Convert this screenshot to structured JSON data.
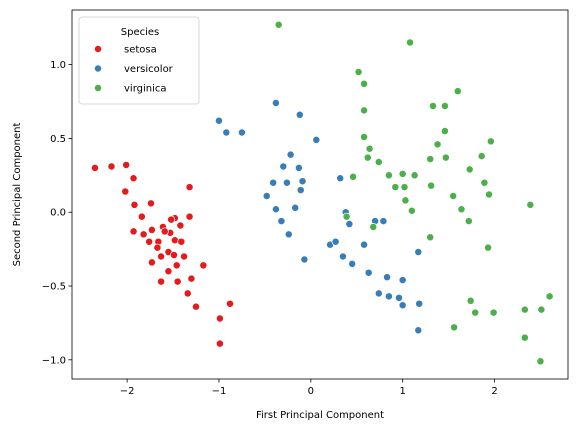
{
  "chart_data": {
    "type": "scatter",
    "title": "",
    "xlabel": "First Principal Component",
    "ylabel": "Second Principal Component",
    "xlim": [
      -2.6,
      2.8
    ],
    "ylim": [
      -1.13,
      1.37
    ],
    "x_ticks": [
      -2,
      -1,
      0,
      1,
      2
    ],
    "y_ticks": [
      -1.0,
      -0.5,
      0.0,
      0.5,
      1.0
    ],
    "x_tick_labels": [
      "−2",
      "−1",
      "0",
      "1",
      "2"
    ],
    "y_tick_labels": [
      "−1.0",
      "−0.5",
      "0.0",
      "0.5",
      "1.0"
    ],
    "grid": false,
    "legend": {
      "title": "Species",
      "placement": "top-left"
    },
    "series": [
      {
        "name": "setosa",
        "color": "#e41a1c",
        "points": [
          [
            -2.35,
            0.3
          ],
          [
            -2.17,
            0.31
          ],
          [
            -2.01,
            0.32
          ],
          [
            -1.93,
            0.23
          ],
          [
            -2.02,
            0.14
          ],
          [
            -1.92,
            0.05
          ],
          [
            -1.74,
            0.06
          ],
          [
            -1.84,
            -0.03
          ],
          [
            -1.93,
            -0.13
          ],
          [
            -1.73,
            -0.12
          ],
          [
            -1.82,
            -0.15
          ],
          [
            -1.66,
            -0.2
          ],
          [
            -1.53,
            -0.14
          ],
          [
            -1.48,
            -0.04
          ],
          [
            -1.32,
            -0.03
          ],
          [
            -1.32,
            0.17
          ],
          [
            -1.42,
            -0.09
          ],
          [
            -1.63,
            -0.3
          ],
          [
            -1.48,
            -0.19
          ],
          [
            -1.55,
            -0.27
          ],
          [
            -1.63,
            -0.47
          ],
          [
            -1.45,
            -0.47
          ],
          [
            -1.34,
            -0.55
          ],
          [
            -1.46,
            -0.36
          ],
          [
            -1.17,
            -0.36
          ],
          [
            -1.25,
            -0.64
          ],
          [
            -0.88,
            -0.62
          ],
          [
            -0.99,
            -0.72
          ],
          [
            -0.99,
            -0.89
          ],
          [
            -1.61,
            -0.1
          ],
          [
            -1.52,
            -0.05
          ],
          [
            -1.59,
            -0.13
          ],
          [
            -1.41,
            -0.2
          ],
          [
            -1.49,
            -0.29
          ],
          [
            -1.55,
            -0.4
          ],
          [
            -1.3,
            -0.45
          ],
          [
            -1.38,
            -0.3
          ],
          [
            -1.76,
            -0.2
          ],
          [
            -1.67,
            -0.24
          ],
          [
            -1.73,
            -0.34
          ]
        ]
      },
      {
        "name": "versicolor",
        "color": "#377eb8",
        "points": [
          [
            -1.0,
            0.62
          ],
          [
            -0.92,
            0.54
          ],
          [
            -0.75,
            0.54
          ],
          [
            -0.38,
            0.74
          ],
          [
            -0.12,
            0.66
          ],
          [
            0.06,
            0.49
          ],
          [
            -0.22,
            0.39
          ],
          [
            -0.3,
            0.31
          ],
          [
            -0.13,
            0.3
          ],
          [
            -0.48,
            0.11
          ],
          [
            -0.41,
            0.2
          ],
          [
            -0.26,
            0.2
          ],
          [
            -0.09,
            0.21
          ],
          [
            -0.38,
            0.02
          ],
          [
            -0.11,
            0.15
          ],
          [
            -0.32,
            -0.06
          ],
          [
            -0.17,
            0.03
          ],
          [
            -0.24,
            -0.15
          ],
          [
            -0.07,
            -0.32
          ],
          [
            0.21,
            -0.22
          ],
          [
            0.32,
            0.23
          ],
          [
            0.46,
            0.24
          ],
          [
            0.27,
            -0.2
          ],
          [
            0.35,
            -0.3
          ],
          [
            0.42,
            -0.08
          ],
          [
            0.45,
            -0.35
          ],
          [
            0.58,
            -0.22
          ],
          [
            0.7,
            -0.06
          ],
          [
            0.74,
            -0.55
          ],
          [
            0.83,
            -0.44
          ],
          [
            0.85,
            -0.57
          ],
          [
            0.79,
            -0.06
          ],
          [
            0.96,
            -0.58
          ],
          [
            1.0,
            -0.63
          ],
          [
            1.0,
            -0.46
          ],
          [
            1.17,
            -0.27
          ],
          [
            1.18,
            -0.62
          ],
          [
            1.17,
            -0.8
          ],
          [
            0.63,
            -0.41
          ],
          [
            0.38,
            0.0
          ]
        ]
      },
      {
        "name": "virginica",
        "color": "#4daf4a",
        "points": [
          [
            -0.35,
            1.27
          ],
          [
            1.08,
            1.15
          ],
          [
            0.52,
            0.95
          ],
          [
            0.58,
            0.87
          ],
          [
            0.58,
            0.69
          ],
          [
            0.58,
            0.51
          ],
          [
            0.64,
            0.43
          ],
          [
            0.62,
            0.37
          ],
          [
            0.74,
            0.34
          ],
          [
            0.85,
            0.25
          ],
          [
            0.92,
            0.17
          ],
          [
            1.02,
            0.17
          ],
          [
            1.0,
            0.26
          ],
          [
            1.13,
            0.25
          ],
          [
            1.03,
            0.08
          ],
          [
            1.1,
            0.01
          ],
          [
            1.31,
            0.18
          ],
          [
            1.3,
            0.36
          ],
          [
            1.38,
            0.46
          ],
          [
            1.46,
            0.55
          ],
          [
            1.33,
            0.72
          ],
          [
            1.46,
            0.72
          ],
          [
            1.6,
            0.82
          ],
          [
            1.47,
            0.37
          ],
          [
            1.73,
            0.29
          ],
          [
            1.86,
            0.38
          ],
          [
            1.96,
            0.48
          ],
          [
            1.89,
            0.2
          ],
          [
            1.94,
            0.12
          ],
          [
            1.55,
            0.11
          ],
          [
            1.64,
            0.02
          ],
          [
            1.72,
            -0.06
          ],
          [
            1.93,
            -0.24
          ],
          [
            1.3,
            -0.17
          ],
          [
            0.39,
            -0.03
          ],
          [
            1.74,
            -0.6
          ],
          [
            1.79,
            -0.68
          ],
          [
            1.99,
            -0.68
          ],
          [
            1.56,
            -0.78
          ],
          [
            2.33,
            -0.66
          ],
          [
            2.33,
            -0.85
          ],
          [
            2.51,
            -0.66
          ],
          [
            2.6,
            -0.57
          ],
          [
            2.5,
            -1.01
          ],
          [
            2.39,
            0.05
          ],
          [
            0.46,
            0.24
          ],
          [
            0.68,
            -0.1
          ]
        ]
      }
    ]
  }
}
